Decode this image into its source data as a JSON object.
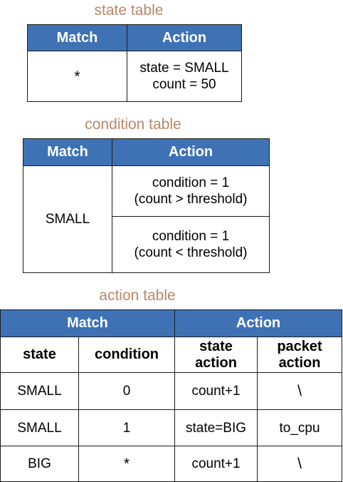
{
  "state_table": {
    "title": "state table",
    "headers": {
      "match": "Match",
      "action": "Action"
    },
    "row": {
      "match": "*",
      "action_line1": "state = SMALL",
      "action_line2": "count = 50"
    }
  },
  "condition_table": {
    "title": "condition table",
    "headers": {
      "match": "Match",
      "action": "Action"
    },
    "match": "SMALL",
    "rows": [
      {
        "line1": "condition = 1",
        "line2": "(count > threshold)"
      },
      {
        "line1": "condition = 1",
        "line2": "(count < threshold)"
      }
    ]
  },
  "action_table": {
    "title": "action table",
    "group_headers": {
      "match": "Match",
      "action": "Action"
    },
    "sub_headers": {
      "state": "state",
      "condition": "condition",
      "state_action_line1": "state",
      "state_action_line2": "action",
      "packet_action_line1": "packet",
      "packet_action_line2": "action"
    },
    "rows": [
      {
        "state": "SMALL",
        "condition": "0",
        "state_action": "count+1",
        "packet_action": "\\"
      },
      {
        "state": "SMALL",
        "condition": "1",
        "state_action": "state=BIG",
        "packet_action": "to_cpu"
      },
      {
        "state": "BIG",
        "condition": "*",
        "state_action": "count+1",
        "packet_action": "\\"
      }
    ]
  },
  "colors": {
    "header_fill": "#3f72b5",
    "caption_text": "#b8886a"
  }
}
